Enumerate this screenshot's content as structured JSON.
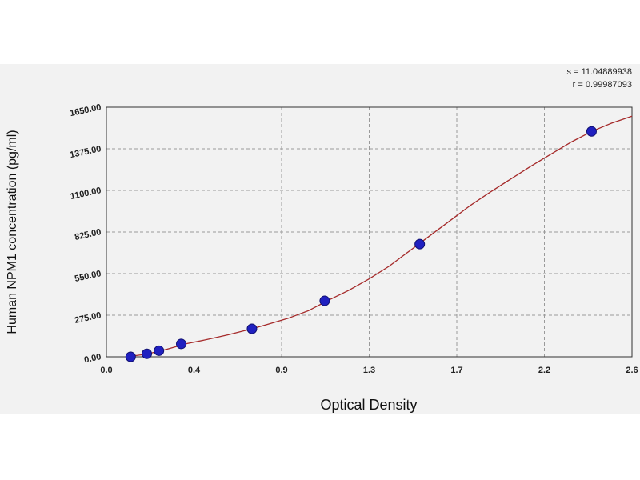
{
  "chart_data": {
    "type": "scatter",
    "title": "",
    "xlabel": "Optical Density",
    "ylabel": "Human NPM1 concentration (pg/ml)",
    "xlim": [
      0,
      2.6
    ],
    "ylim": [
      0,
      1650
    ],
    "x_ticks": [
      "0.0",
      "0.4",
      "0.9",
      "1.3",
      "1.7",
      "2.2",
      "2.6"
    ],
    "y_ticks": [
      "0.00",
      "275.00",
      "550.00",
      "825.00",
      "1100.00",
      "1375.00",
      "1650.00"
    ],
    "grid": true,
    "points": [
      {
        "x": 0.12,
        "y": 0
      },
      {
        "x": 0.2,
        "y": 20
      },
      {
        "x": 0.26,
        "y": 40
      },
      {
        "x": 0.37,
        "y": 85
      },
      {
        "x": 0.72,
        "y": 185
      },
      {
        "x": 1.08,
        "y": 370
      },
      {
        "x": 1.55,
        "y": 745
      },
      {
        "x": 2.4,
        "y": 1490
      }
    ],
    "curve": [
      {
        "x": 0.1,
        "y": 0
      },
      {
        "x": 0.2,
        "y": 18
      },
      {
        "x": 0.3,
        "y": 50
      },
      {
        "x": 0.4,
        "y": 88
      },
      {
        "x": 0.5,
        "y": 115
      },
      {
        "x": 0.6,
        "y": 145
      },
      {
        "x": 0.72,
        "y": 185
      },
      {
        "x": 0.8,
        "y": 215
      },
      {
        "x": 0.9,
        "y": 255
      },
      {
        "x": 1.0,
        "y": 305
      },
      {
        "x": 1.1,
        "y": 375
      },
      {
        "x": 1.2,
        "y": 440
      },
      {
        "x": 1.3,
        "y": 515
      },
      {
        "x": 1.4,
        "y": 600
      },
      {
        "x": 1.5,
        "y": 700
      },
      {
        "x": 1.6,
        "y": 800
      },
      {
        "x": 1.7,
        "y": 900
      },
      {
        "x": 1.8,
        "y": 1000
      },
      {
        "x": 1.9,
        "y": 1090
      },
      {
        "x": 2.0,
        "y": 1175
      },
      {
        "x": 2.1,
        "y": 1260
      },
      {
        "x": 2.2,
        "y": 1340
      },
      {
        "x": 2.3,
        "y": 1420
      },
      {
        "x": 2.4,
        "y": 1490
      },
      {
        "x": 2.5,
        "y": 1545
      },
      {
        "x": 2.6,
        "y": 1590
      }
    ],
    "fit_stats": [
      "s = 11.04889938",
      "r = 0.99987093"
    ],
    "colors": {
      "curve": "#a52a2a",
      "point": "#2020c0",
      "grid": "#9a9a9a"
    }
  }
}
